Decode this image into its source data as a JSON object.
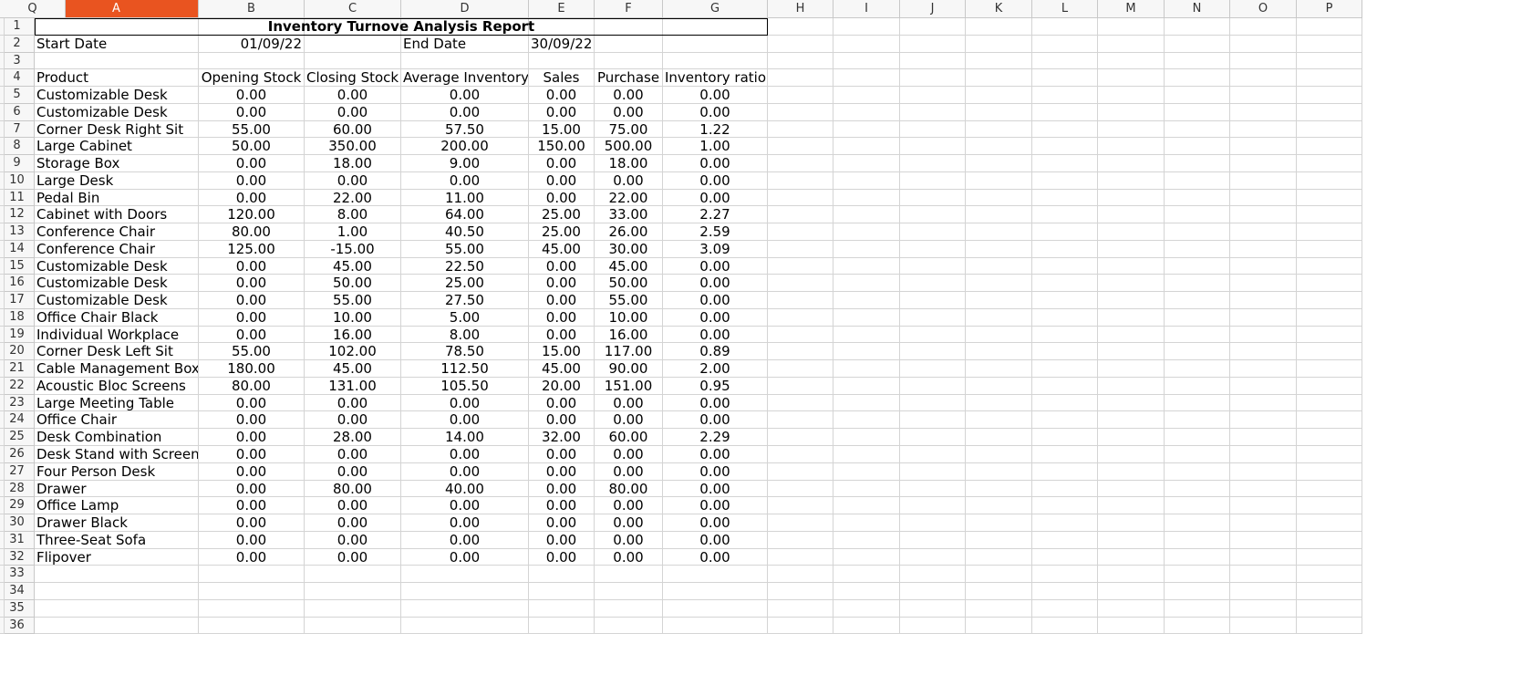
{
  "columns": [
    "A",
    "B",
    "C",
    "D",
    "E",
    "F",
    "G",
    "H",
    "I",
    "J",
    "K",
    "L",
    "M",
    "N",
    "O",
    "P",
    "Q"
  ],
  "selected_column": "A",
  "row_numbers": [
    "1",
    "2",
    "3",
    "4",
    "5",
    "6",
    "7",
    "8",
    "9",
    "10",
    "11",
    "12",
    "13",
    "14",
    "15",
    "16",
    "17",
    "18",
    "19",
    "20",
    "21",
    "22",
    "23",
    "24",
    "25",
    "26",
    "27",
    "28",
    "29",
    "30",
    "31",
    "32",
    "33",
    "34",
    "35",
    "36"
  ],
  "report": {
    "title": "Inventory Turnove Analysis Report",
    "start_label": "Start Date",
    "start_value": "01/09/22",
    "end_label": "End Date",
    "end_value": "30/09/22"
  },
  "table": {
    "headers": [
      "Product",
      "Opening Stock",
      "Closing Stock",
      "Average Inventory",
      "Sales",
      "Purchase",
      "Inventory ratio"
    ],
    "rows": [
      [
        "Customizable Desk",
        "0.00",
        "0.00",
        "0.00",
        "0.00",
        "0.00",
        "0.00"
      ],
      [
        "Customizable Desk",
        "0.00",
        "0.00",
        "0.00",
        "0.00",
        "0.00",
        "0.00"
      ],
      [
        "Corner Desk Right Sit",
        "55.00",
        "60.00",
        "57.50",
        "15.00",
        "75.00",
        "1.22"
      ],
      [
        "Large Cabinet",
        "50.00",
        "350.00",
        "200.00",
        "150.00",
        "500.00",
        "1.00"
      ],
      [
        "Storage Box",
        "0.00",
        "18.00",
        "9.00",
        "0.00",
        "18.00",
        "0.00"
      ],
      [
        "Large Desk",
        "0.00",
        "0.00",
        "0.00",
        "0.00",
        "0.00",
        "0.00"
      ],
      [
        "Pedal Bin",
        "0.00",
        "22.00",
        "11.00",
        "0.00",
        "22.00",
        "0.00"
      ],
      [
        "Cabinet with Doors",
        "120.00",
        "8.00",
        "64.00",
        "25.00",
        "33.00",
        "2.27"
      ],
      [
        "Conference Chair",
        "80.00",
        "1.00",
        "40.50",
        "25.00",
        "26.00",
        "2.59"
      ],
      [
        "Conference Chair",
        "125.00",
        "-15.00",
        "55.00",
        "45.00",
        "30.00",
        "3.09"
      ],
      [
        "Customizable Desk",
        "0.00",
        "45.00",
        "22.50",
        "0.00",
        "45.00",
        "0.00"
      ],
      [
        "Customizable Desk",
        "0.00",
        "50.00",
        "25.00",
        "0.00",
        "50.00",
        "0.00"
      ],
      [
        "Customizable Desk",
        "0.00",
        "55.00",
        "27.50",
        "0.00",
        "55.00",
        "0.00"
      ],
      [
        "Office Chair Black",
        "0.00",
        "10.00",
        "5.00",
        "0.00",
        "10.00",
        "0.00"
      ],
      [
        "Individual Workplace",
        "0.00",
        "16.00",
        "8.00",
        "0.00",
        "16.00",
        "0.00"
      ],
      [
        "Corner Desk Left Sit",
        "55.00",
        "102.00",
        "78.50",
        "15.00",
        "117.00",
        "0.89"
      ],
      [
        "Cable Management Box",
        "180.00",
        "45.00",
        "112.50",
        "45.00",
        "90.00",
        "2.00"
      ],
      [
        "Acoustic Bloc Screens",
        "80.00",
        "131.00",
        "105.50",
        "20.00",
        "151.00",
        "0.95"
      ],
      [
        "Large Meeting Table",
        "0.00",
        "0.00",
        "0.00",
        "0.00",
        "0.00",
        "0.00"
      ],
      [
        "Office Chair",
        "0.00",
        "0.00",
        "0.00",
        "0.00",
        "0.00",
        "0.00"
      ],
      [
        "Desk Combination",
        "0.00",
        "28.00",
        "14.00",
        "32.00",
        "60.00",
        "2.29"
      ],
      [
        "Desk Stand with Screen",
        "0.00",
        "0.00",
        "0.00",
        "0.00",
        "0.00",
        "0.00"
      ],
      [
        "Four Person Desk",
        "0.00",
        "0.00",
        "0.00",
        "0.00",
        "0.00",
        "0.00"
      ],
      [
        "Drawer",
        "0.00",
        "80.00",
        "40.00",
        "0.00",
        "80.00",
        "0.00"
      ],
      [
        "Office Lamp",
        "0.00",
        "0.00",
        "0.00",
        "0.00",
        "0.00",
        "0.00"
      ],
      [
        "Drawer Black",
        "0.00",
        "0.00",
        "0.00",
        "0.00",
        "0.00",
        "0.00"
      ],
      [
        "Three-Seat Sofa",
        "0.00",
        "0.00",
        "0.00",
        "0.00",
        "0.00",
        "0.00"
      ],
      [
        "Flipover",
        "0.00",
        "0.00",
        "0.00",
        "0.00",
        "0.00",
        "0.00"
      ]
    ]
  },
  "colors": {
    "selected_header": "#e95420",
    "grid": "#d4d4d4"
  }
}
